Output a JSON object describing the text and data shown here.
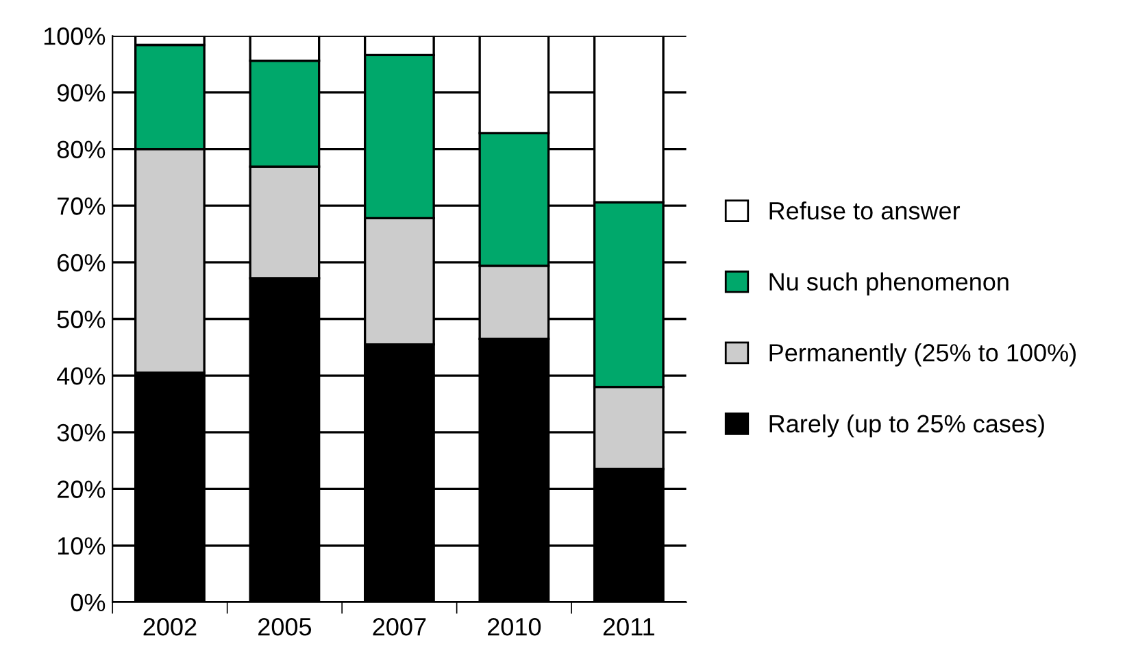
{
  "chart_data": {
    "type": "bar",
    "stacked": true,
    "categories": [
      "2002",
      "2005",
      "2007",
      "2010",
      "2011"
    ],
    "series": [
      {
        "name": "Rarely (up to 25% cases)",
        "color": "#000000",
        "values": [
          40.5,
          57.2,
          45.5,
          46.5,
          23.5
        ]
      },
      {
        "name": "Permanently (25% to 100%)",
        "color": "#cccccc",
        "values": [
          39.5,
          19.7,
          22.3,
          12.9,
          14.5
        ]
      },
      {
        "name": "Nu such phenomenon",
        "color": "#00a86b",
        "values": [
          18.4,
          18.7,
          28.8,
          23.4,
          32.6
        ]
      },
      {
        "name": "Refuse to answer",
        "color": "#ffffff",
        "values": [
          1.6,
          4.4,
          3.4,
          17.2,
          29.4
        ]
      }
    ],
    "ylim": [
      0,
      100
    ],
    "yticks": [
      {
        "value": 0,
        "label": "0%"
      },
      {
        "value": 10,
        "label": "10%"
      },
      {
        "value": 20,
        "label": "20%"
      },
      {
        "value": 30,
        "label": "30%"
      },
      {
        "value": 40,
        "label": "40%"
      },
      {
        "value": 50,
        "label": "50%"
      },
      {
        "value": 60,
        "label": "60%"
      },
      {
        "value": 70,
        "label": "70%"
      },
      {
        "value": 80,
        "label": "80%"
      },
      {
        "value": 90,
        "label": "90%"
      },
      {
        "value": 100,
        "label": "100%"
      }
    ],
    "grid": "y",
    "legend": "right"
  }
}
